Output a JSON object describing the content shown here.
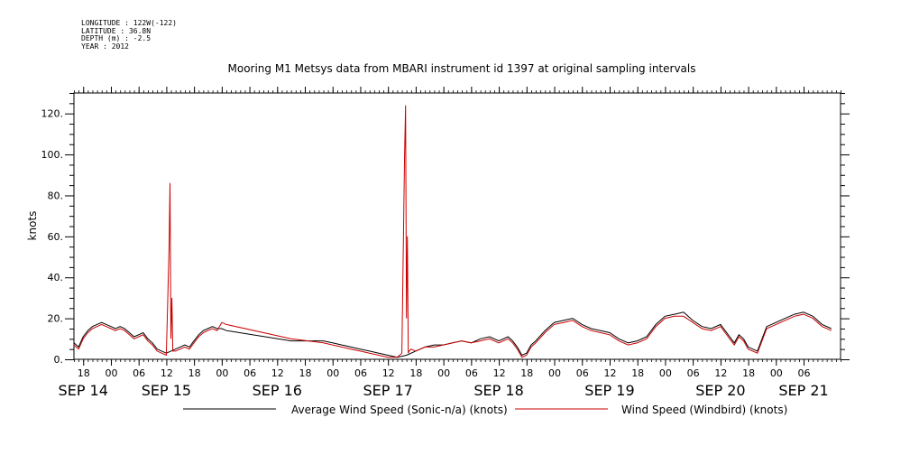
{
  "header": {
    "longitude": "LONGITUDE : 122W(-122)",
    "latitude": "LATITUDE : 36.8N",
    "depth": "DEPTH (m) : -2.5",
    "year": "YEAR : 2012"
  },
  "chart_data": {
    "type": "line",
    "title": "Mooring M1 Metsys data from MBARI instrument id 1397 at original sampling intervals",
    "ylabel": "knots",
    "ylim": [
      0,
      130
    ],
    "yticks": [
      0,
      20,
      40,
      60,
      80,
      100,
      120
    ],
    "yticklabels": [
      "0.",
      "20.",
      "40.",
      "60.",
      "80.",
      "100.",
      "120."
    ],
    "x_unit": "hours since 2012-09-14 00:00",
    "xlim": [
      16,
      182
    ],
    "hour_ticks": [
      {
        "x": 18,
        "label": "18"
      },
      {
        "x": 24,
        "label": "00"
      },
      {
        "x": 30,
        "label": "06"
      },
      {
        "x": 36,
        "label": "12"
      },
      {
        "x": 42,
        "label": "18"
      },
      {
        "x": 48,
        "label": "00"
      },
      {
        "x": 54,
        "label": "06"
      },
      {
        "x": 60,
        "label": "12"
      },
      {
        "x": 66,
        "label": "18"
      },
      {
        "x": 72,
        "label": "00"
      },
      {
        "x": 78,
        "label": "06"
      },
      {
        "x": 84,
        "label": "12"
      },
      {
        "x": 90,
        "label": "18"
      },
      {
        "x": 96,
        "label": "00"
      },
      {
        "x": 102,
        "label": "06"
      },
      {
        "x": 108,
        "label": "12"
      },
      {
        "x": 114,
        "label": "18"
      },
      {
        "x": 120,
        "label": "00"
      },
      {
        "x": 126,
        "label": "06"
      },
      {
        "x": 132,
        "label": "12"
      },
      {
        "x": 138,
        "label": "18"
      },
      {
        "x": 144,
        "label": "00"
      },
      {
        "x": 150,
        "label": "06"
      },
      {
        "x": 156,
        "label": "12"
      },
      {
        "x": 162,
        "label": "18"
      },
      {
        "x": 168,
        "label": "00"
      },
      {
        "x": 174,
        "label": "06"
      }
    ],
    "day_labels": [
      {
        "x": 18,
        "label": "SEP 14"
      },
      {
        "x": 36,
        "label": "SEP 15"
      },
      {
        "x": 60,
        "label": "SEP 16"
      },
      {
        "x": 84,
        "label": "SEP 17"
      },
      {
        "x": 108,
        "label": "SEP 18"
      },
      {
        "x": 132,
        "label": "SEP 19"
      },
      {
        "x": 156,
        "label": "SEP 20"
      },
      {
        "x": 174,
        "label": "SEP 21"
      }
    ],
    "series": [
      {
        "name": "Average Wind Speed (Sonic-n/a) (knots)",
        "color": "#000000",
        "x": [
          16,
          17,
          18,
          19,
          20,
          21,
          22,
          23,
          24,
          25,
          26,
          27,
          28,
          29,
          30,
          31,
          32,
          33,
          34,
          35,
          36,
          37,
          38,
          39,
          40,
          41,
          42,
          43,
          44,
          45,
          46,
          47,
          48,
          49,
          63,
          70,
          72,
          74,
          76,
          78,
          80,
          82,
          84,
          86,
          88,
          90,
          92,
          94,
          96,
          98,
          100,
          102,
          104,
          106,
          108,
          110,
          111,
          112,
          113,
          114,
          115,
          116,
          118,
          120,
          122,
          124,
          126,
          128,
          130,
          132,
          134,
          136,
          138,
          140,
          142,
          144,
          146,
          148,
          150,
          152,
          154,
          156,
          157,
          158,
          159,
          160,
          161,
          162,
          164,
          166,
          168,
          170,
          172,
          174,
          176,
          178,
          180
        ],
        "y": [
          8,
          6,
          11,
          14,
          16,
          17,
          18,
          17,
          16,
          15,
          16,
          15,
          13,
          11,
          12,
          13,
          10,
          8,
          5,
          4,
          3,
          4,
          5,
          6,
          7,
          6,
          9,
          12,
          14,
          15,
          16,
          15,
          15,
          14,
          9,
          9,
          8,
          7,
          6,
          5,
          4,
          3,
          2,
          1,
          2,
          4,
          6,
          7,
          7,
          8,
          9,
          8,
          10,
          11,
          9,
          11,
          9,
          6,
          2,
          3,
          7,
          9,
          14,
          18,
          19,
          20,
          17,
          15,
          14,
          13,
          10,
          8,
          9,
          11,
          17,
          21,
          22,
          23,
          19,
          16,
          15,
          17,
          14,
          11,
          8,
          12,
          10,
          6,
          4,
          16,
          18,
          20,
          22,
          23,
          21,
          17,
          15
        ]
      },
      {
        "name": "Wind Speed (Windbird) (knots)",
        "color": "#cc0000",
        "x": [
          16,
          17,
          18,
          19,
          20,
          21,
          22,
          23,
          24,
          25,
          26,
          27,
          28,
          29,
          30,
          31,
          32,
          33,
          34,
          35,
          36,
          36.6,
          36.8,
          37,
          37.2,
          37.4,
          38,
          39,
          40,
          41,
          42,
          43,
          44,
          45,
          46,
          47,
          48,
          49,
          63,
          70,
          72,
          74,
          76,
          78,
          80,
          82,
          84,
          86,
          87,
          87.6,
          87.8,
          88,
          88.2,
          88.4,
          88.6,
          89,
          90,
          92,
          94,
          96,
          98,
          100,
          102,
          104,
          106,
          108,
          110,
          111,
          112,
          113,
          114,
          115,
          116,
          118,
          120,
          122,
          124,
          126,
          128,
          130,
          132,
          134,
          136,
          138,
          140,
          142,
          144,
          146,
          148,
          150,
          152,
          154,
          156,
          157,
          158,
          159,
          160,
          161,
          162,
          164,
          166,
          168,
          170,
          172,
          174,
          176,
          178,
          180
        ],
        "y": [
          7,
          5,
          10,
          13,
          15,
          16,
          17,
          16,
          15,
          14,
          15,
          14,
          12,
          10,
          11,
          12,
          9,
          7,
          4,
          3,
          2,
          55,
          86,
          10,
          30,
          4,
          4,
          5,
          6,
          5,
          8,
          11,
          13,
          14,
          15,
          14,
          18,
          17,
          10,
          8,
          7,
          6,
          5,
          4,
          3,
          2,
          1,
          1,
          3,
          100,
          124,
          20,
          60,
          3,
          4,
          5,
          4,
          6,
          6,
          7,
          8,
          9,
          8,
          9,
          10,
          8,
          10,
          8,
          5,
          1,
          2,
          6,
          8,
          13,
          17,
          18,
          19,
          16,
          14,
          13,
          12,
          9,
          7,
          8,
          10,
          16,
          20,
          21,
          21,
          18,
          15,
          14,
          16,
          13,
          10,
          7,
          11,
          9,
          5,
          3,
          15,
          17,
          19,
          21,
          22,
          20,
          16,
          14
        ]
      }
    ],
    "legend": {
      "placement": "bottom",
      "entries": [
        {
          "label": "Average Wind Speed (Sonic-n/a) (knots)",
          "color": "#000000"
        },
        {
          "label": "Wind Speed (Windbird) (knots)",
          "color": "#cc0000"
        }
      ]
    },
    "grid": false
  }
}
